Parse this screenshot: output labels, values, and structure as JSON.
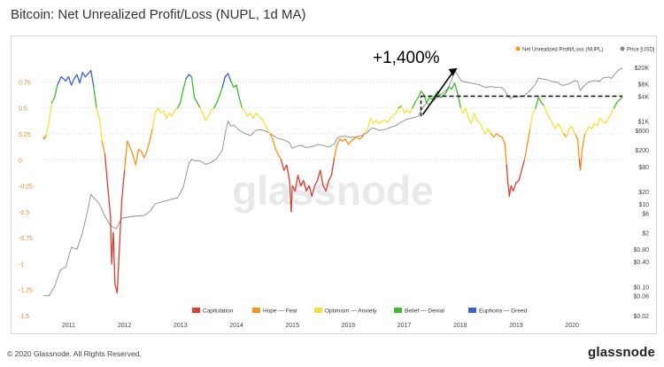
{
  "title": "Bitcoin: Net Unrealized Profit/Loss (NUPL, 1d MA)",
  "footer": {
    "copyright": "© 2020 Glassnode. All Rights Reserved.",
    "brand": "glassnode"
  },
  "watermark": "glassnode",
  "chart_data": {
    "type": "line",
    "title": "Bitcoin: Net Unrealized Profit/Loss (NUPL, 1d MA)",
    "legend_top": [
      {
        "name": "Net Unrealized Profit/Loss (NUPL)",
        "color": "#f7931a"
      },
      {
        "name": "Price [USD]",
        "color": "#888888"
      }
    ],
    "legend_bottom": [
      {
        "name": "Capitulation",
        "color": "#e03c31",
        "range": [
          -2,
          0
        ]
      },
      {
        "name": "Hope — Fear",
        "color": "#f7931a",
        "range": [
          0,
          0.25
        ]
      },
      {
        "name": "Optimism — Anxiety",
        "color": "#f2e33a",
        "range": [
          0.25,
          0.5
        ]
      },
      {
        "name": "Belief — Denial",
        "color": "#3dbb2e",
        "range": [
          0.5,
          0.75
        ]
      },
      {
        "name": "Euphoria — Greed",
        "color": "#3b5fd9",
        "range": [
          0.75,
          2
        ]
      }
    ],
    "x_ticks": [
      "2011",
      "2012",
      "2013",
      "2014",
      "2015",
      "2016",
      "2017",
      "2018",
      "2019",
      "2020"
    ],
    "x_range": [
      2010.6,
      2020.95
    ],
    "y_left_ticks": [
      "0.75",
      "0.5",
      "0.25",
      "0",
      "-0.25",
      "-0.5",
      "-0.75",
      "-1",
      "-1.25",
      "-1.5"
    ],
    "y_left_range": [
      -1.5,
      0.95
    ],
    "y_right_ticks": [
      "$20K",
      "$8K",
      "$4K",
      "$1K",
      "$600",
      "$200",
      "$80",
      "$20",
      "$10",
      "$6",
      "$2",
      "$0.80",
      "$0.40",
      "$0.10",
      "$0.06",
      "$0.02"
    ],
    "y_right_scale": "log",
    "y_right_range": [
      0.02,
      28000
    ],
    "gridlines": [
      0.75,
      0.5,
      0.25,
      0
    ],
    "nupl": [
      [
        2010.6,
        0.22
      ],
      [
        2010.62,
        0.2
      ],
      [
        2010.65,
        0.24
      ],
      [
        2010.7,
        0.36
      ],
      [
        2010.75,
        0.55
      ],
      [
        2010.8,
        0.6
      ],
      [
        2010.85,
        0.72
      ],
      [
        2010.92,
        0.8
      ],
      [
        2011,
        0.76
      ],
      [
        2011.05,
        0.8
      ],
      [
        2011.1,
        0.72
      ],
      [
        2011.15,
        0.78
      ],
      [
        2011.2,
        0.82
      ],
      [
        2011.25,
        0.74
      ],
      [
        2011.3,
        0.84
      ],
      [
        2011.35,
        0.8
      ],
      [
        2011.4,
        0.83
      ],
      [
        2011.45,
        0.86
      ],
      [
        2011.5,
        0.7
      ],
      [
        2011.55,
        0.5
      ],
      [
        2011.6,
        0.4
      ],
      [
        2011.65,
        0.18
      ],
      [
        2011.7,
        0.05
      ],
      [
        2011.75,
        -0.25
      ],
      [
        2011.8,
        -0.55
      ],
      [
        2011.82,
        -1.0
      ],
      [
        2011.85,
        -0.7
      ],
      [
        2011.88,
        -1.2
      ],
      [
        2011.92,
        -1.28
      ],
      [
        2011.95,
        -0.95
      ],
      [
        2012,
        -0.4
      ],
      [
        2012.05,
        -0.1
      ],
      [
        2012.1,
        0.18
      ],
      [
        2012.15,
        0.12
      ],
      [
        2012.2,
        0.05
      ],
      [
        2012.25,
        -0.05
      ],
      [
        2012.3,
        0.1
      ],
      [
        2012.35,
        0.08
      ],
      [
        2012.4,
        0.02
      ],
      [
        2012.45,
        0.08
      ],
      [
        2012.5,
        0.18
      ],
      [
        2012.55,
        0.3
      ],
      [
        2012.6,
        0.45
      ],
      [
        2012.65,
        0.5
      ],
      [
        2012.7,
        0.45
      ],
      [
        2012.75,
        0.47
      ],
      [
        2012.8,
        0.4
      ],
      [
        2012.85,
        0.45
      ],
      [
        2012.9,
        0.42
      ],
      [
        2012.95,
        0.48
      ],
      [
        2013,
        0.5
      ],
      [
        2013.05,
        0.55
      ],
      [
        2013.1,
        0.68
      ],
      [
        2013.15,
        0.78
      ],
      [
        2013.2,
        0.82
      ],
      [
        2013.25,
        0.8
      ],
      [
        2013.3,
        0.6
      ],
      [
        2013.35,
        0.55
      ],
      [
        2013.4,
        0.5
      ],
      [
        2013.45,
        0.45
      ],
      [
        2013.5,
        0.38
      ],
      [
        2013.55,
        0.42
      ],
      [
        2013.6,
        0.48
      ],
      [
        2013.65,
        0.5
      ],
      [
        2013.7,
        0.55
      ],
      [
        2013.75,
        0.62
      ],
      [
        2013.8,
        0.7
      ],
      [
        2013.85,
        0.8
      ],
      [
        2013.9,
        0.83
      ],
      [
        2013.95,
        0.76
      ],
      [
        2014,
        0.7
      ],
      [
        2014.05,
        0.72
      ],
      [
        2014.1,
        0.6
      ],
      [
        2014.15,
        0.5
      ],
      [
        2014.2,
        0.47
      ],
      [
        2014.25,
        0.42
      ],
      [
        2014.3,
        0.45
      ],
      [
        2014.35,
        0.4
      ],
      [
        2014.4,
        0.45
      ],
      [
        2014.45,
        0.42
      ],
      [
        2014.5,
        0.4
      ],
      [
        2014.55,
        0.35
      ],
      [
        2014.6,
        0.3
      ],
      [
        2014.65,
        0.25
      ],
      [
        2014.7,
        0.2
      ],
      [
        2014.75,
        0.1
      ],
      [
        2014.8,
        0.05
      ],
      [
        2014.85,
        0.0
      ],
      [
        2014.9,
        -0.1
      ],
      [
        2014.95,
        -0.05
      ],
      [
        2015,
        -0.2
      ],
      [
        2015.03,
        -0.5
      ],
      [
        2015.05,
        -0.25
      ],
      [
        2015.1,
        -0.3
      ],
      [
        2015.15,
        -0.15
      ],
      [
        2015.2,
        -0.25
      ],
      [
        2015.25,
        -0.2
      ],
      [
        2015.3,
        -0.3
      ],
      [
        2015.35,
        -0.25
      ],
      [
        2015.4,
        -0.35
      ],
      [
        2015.45,
        -0.25
      ],
      [
        2015.5,
        -0.2
      ],
      [
        2015.55,
        -0.1
      ],
      [
        2015.6,
        -0.25
      ],
      [
        2015.65,
        -0.3
      ],
      [
        2015.7,
        -0.2
      ],
      [
        2015.75,
        -0.15
      ],
      [
        2015.8,
        0.02
      ],
      [
        2015.85,
        0.15
      ],
      [
        2015.9,
        0.2
      ],
      [
        2015.95,
        0.18
      ],
      [
        2016,
        0.2
      ],
      [
        2016.05,
        0.15
      ],
      [
        2016.1,
        0.18
      ],
      [
        2016.15,
        0.2
      ],
      [
        2016.2,
        0.22
      ],
      [
        2016.25,
        0.2
      ],
      [
        2016.3,
        0.22
      ],
      [
        2016.35,
        0.26
      ],
      [
        2016.4,
        0.3
      ],
      [
        2016.45,
        0.4
      ],
      [
        2016.5,
        0.35
      ],
      [
        2016.55,
        0.38
      ],
      [
        2016.6,
        0.35
      ],
      [
        2016.65,
        0.37
      ],
      [
        2016.7,
        0.38
      ],
      [
        2016.75,
        0.36
      ],
      [
        2016.8,
        0.4
      ],
      [
        2016.85,
        0.43
      ],
      [
        2016.9,
        0.45
      ],
      [
        2016.95,
        0.5
      ],
      [
        2017,
        0.52
      ],
      [
        2017.05,
        0.45
      ],
      [
        2017.1,
        0.48
      ],
      [
        2017.15,
        0.45
      ],
      [
        2017.2,
        0.5
      ],
      [
        2017.25,
        0.56
      ],
      [
        2017.3,
        0.6
      ],
      [
        2017.35,
        0.66
      ],
      [
        2017.4,
        0.63
      ],
      [
        2017.45,
        0.55
      ],
      [
        2017.5,
        0.6
      ],
      [
        2017.55,
        0.58
      ],
      [
        2017.6,
        0.62
      ],
      [
        2017.65,
        0.66
      ],
      [
        2017.7,
        0.6
      ],
      [
        2017.75,
        0.62
      ],
      [
        2017.8,
        0.65
      ],
      [
        2017.85,
        0.7
      ],
      [
        2017.9,
        0.68
      ],
      [
        2017.95,
        0.74
      ],
      [
        2018,
        0.65
      ],
      [
        2018.03,
        0.58
      ],
      [
        2018.06,
        0.5
      ],
      [
        2018.1,
        0.45
      ],
      [
        2018.15,
        0.5
      ],
      [
        2018.2,
        0.4
      ],
      [
        2018.25,
        0.35
      ],
      [
        2018.3,
        0.45
      ],
      [
        2018.35,
        0.38
      ],
      [
        2018.4,
        0.36
      ],
      [
        2018.45,
        0.3
      ],
      [
        2018.5,
        0.25
      ],
      [
        2018.55,
        0.3
      ],
      [
        2018.6,
        0.25
      ],
      [
        2018.65,
        0.22
      ],
      [
        2018.7,
        0.25
      ],
      [
        2018.75,
        0.23
      ],
      [
        2018.8,
        0.22
      ],
      [
        2018.85,
        0.15
      ],
      [
        2018.88,
        -0.05
      ],
      [
        2018.9,
        -0.2
      ],
      [
        2018.93,
        -0.35
      ],
      [
        2018.96,
        -0.25
      ],
      [
        2019,
        -0.3
      ],
      [
        2019.05,
        -0.22
      ],
      [
        2019.1,
        -0.2
      ],
      [
        2019.15,
        -0.1
      ],
      [
        2019.2,
        0.0
      ],
      [
        2019.25,
        0.15
      ],
      [
        2019.3,
        0.3
      ],
      [
        2019.35,
        0.45
      ],
      [
        2019.4,
        0.5
      ],
      [
        2019.45,
        0.6
      ],
      [
        2019.5,
        0.55
      ],
      [
        2019.55,
        0.52
      ],
      [
        2019.6,
        0.45
      ],
      [
        2019.65,
        0.4
      ],
      [
        2019.7,
        0.35
      ],
      [
        2019.75,
        0.3
      ],
      [
        2019.8,
        0.35
      ],
      [
        2019.85,
        0.3
      ],
      [
        2019.9,
        0.25
      ],
      [
        2019.95,
        0.22
      ],
      [
        2020,
        0.3
      ],
      [
        2020.05,
        0.32
      ],
      [
        2020.1,
        0.25
      ],
      [
        2020.15,
        0.2
      ],
      [
        2020.18,
        0.0
      ],
      [
        2020.2,
        -0.1
      ],
      [
        2020.23,
        0.1
      ],
      [
        2020.28,
        0.25
      ],
      [
        2020.35,
        0.32
      ],
      [
        2020.4,
        0.3
      ],
      [
        2020.45,
        0.35
      ],
      [
        2020.5,
        0.33
      ],
      [
        2020.55,
        0.4
      ],
      [
        2020.6,
        0.37
      ],
      [
        2020.65,
        0.35
      ],
      [
        2020.7,
        0.4
      ],
      [
        2020.75,
        0.45
      ],
      [
        2020.8,
        0.5
      ],
      [
        2020.85,
        0.55
      ],
      [
        2020.9,
        0.58
      ],
      [
        2020.95,
        0.6
      ]
    ],
    "price": [
      [
        2010.6,
        0.06
      ],
      [
        2010.7,
        0.06
      ],
      [
        2010.8,
        0.1
      ],
      [
        2010.9,
        0.25
      ],
      [
        2011,
        0.3
      ],
      [
        2011.1,
        0.9
      ],
      [
        2011.2,
        0.8
      ],
      [
        2011.3,
        2
      ],
      [
        2011.4,
        8
      ],
      [
        2011.45,
        17
      ],
      [
        2011.5,
        14
      ],
      [
        2011.6,
        10
      ],
      [
        2011.7,
        5
      ],
      [
        2011.8,
        3
      ],
      [
        2011.9,
        2.5
      ],
      [
        2012,
        4.5
      ],
      [
        2012.2,
        5
      ],
      [
        2012.4,
        5.2
      ],
      [
        2012.5,
        6.5
      ],
      [
        2012.6,
        10
      ],
      [
        2012.7,
        11
      ],
      [
        2012.8,
        12
      ],
      [
        2012.9,
        13
      ],
      [
        2013,
        14
      ],
      [
        2013.1,
        25
      ],
      [
        2013.2,
        95
      ],
      [
        2013.25,
        120
      ],
      [
        2013.3,
        110
      ],
      [
        2013.4,
        110
      ],
      [
        2013.5,
        90
      ],
      [
        2013.6,
        100
      ],
      [
        2013.7,
        125
      ],
      [
        2013.8,
        200
      ],
      [
        2013.85,
        500
      ],
      [
        2013.9,
        1000
      ],
      [
        2013.95,
        750
      ],
      [
        2014,
        800
      ],
      [
        2014.1,
        600
      ],
      [
        2014.2,
        500
      ],
      [
        2014.3,
        450
      ],
      [
        2014.4,
        600
      ],
      [
        2014.5,
        620
      ],
      [
        2014.6,
        550
      ],
      [
        2014.7,
        450
      ],
      [
        2014.8,
        380
      ],
      [
        2014.9,
        350
      ],
      [
        2015,
        300
      ],
      [
        2015.05,
        220
      ],
      [
        2015.1,
        240
      ],
      [
        2015.2,
        260
      ],
      [
        2015.3,
        230
      ],
      [
        2015.4,
        240
      ],
      [
        2015.5,
        270
      ],
      [
        2015.6,
        260
      ],
      [
        2015.7,
        235
      ],
      [
        2015.8,
        280
      ],
      [
        2015.85,
        380
      ],
      [
        2015.9,
        420
      ],
      [
        2016,
        430
      ],
      [
        2016.1,
        400
      ],
      [
        2016.2,
        420
      ],
      [
        2016.3,
        450
      ],
      [
        2016.4,
        540
      ],
      [
        2016.45,
        650
      ],
      [
        2016.5,
        680
      ],
      [
        2016.6,
        600
      ],
      [
        2016.7,
        620
      ],
      [
        2016.8,
        700
      ],
      [
        2016.9,
        780
      ],
      [
        2017,
        950
      ],
      [
        2017.1,
        1100
      ],
      [
        2017.2,
        1200
      ],
      [
        2017.3,
        1300
      ],
      [
        2017.35,
        1800
      ],
      [
        2017.4,
        2300
      ],
      [
        2017.45,
        2700
      ],
      [
        2017.5,
        2500
      ],
      [
        2017.6,
        3300
      ],
      [
        2017.7,
        4300
      ],
      [
        2017.8,
        5500
      ],
      [
        2017.85,
        7000
      ],
      [
        2017.9,
        10000
      ],
      [
        2017.95,
        16000
      ],
      [
        2018,
        13500
      ],
      [
        2018.05,
        10000
      ],
      [
        2018.1,
        9000
      ],
      [
        2018.2,
        8500
      ],
      [
        2018.3,
        8000
      ],
      [
        2018.4,
        7500
      ],
      [
        2018.5,
        6500
      ],
      [
        2018.6,
        6800
      ],
      [
        2018.7,
        6500
      ],
      [
        2018.8,
        6400
      ],
      [
        2018.85,
        5500
      ],
      [
        2018.9,
        4000
      ],
      [
        2018.95,
        3500
      ],
      [
        2019,
        3800
      ],
      [
        2019.1,
        3900
      ],
      [
        2019.2,
        4100
      ],
      [
        2019.3,
        5500
      ],
      [
        2019.4,
        8000
      ],
      [
        2019.45,
        11000
      ],
      [
        2019.5,
        10500
      ],
      [
        2019.6,
        10000
      ],
      [
        2019.7,
        9000
      ],
      [
        2019.8,
        8500
      ],
      [
        2019.85,
        7500
      ],
      [
        2019.9,
        7300
      ],
      [
        2020,
        8000
      ],
      [
        2020.1,
        9500
      ],
      [
        2020.15,
        9000
      ],
      [
        2020.2,
        5500
      ],
      [
        2020.25,
        6800
      ],
      [
        2020.35,
        8800
      ],
      [
        2020.45,
        9500
      ],
      [
        2020.55,
        9200
      ],
      [
        2020.6,
        11000
      ],
      [
        2020.7,
        11500
      ],
      [
        2020.75,
        10700
      ],
      [
        2020.8,
        13000
      ],
      [
        2020.85,
        15500
      ],
      [
        2020.9,
        18000
      ],
      [
        2020.95,
        19000
      ]
    ],
    "annotation": {
      "text": "+1,400%",
      "from": [
        2017.35,
        1300
      ],
      "to": [
        2018.0,
        19000
      ],
      "baseline_y_price": 4000
    }
  }
}
